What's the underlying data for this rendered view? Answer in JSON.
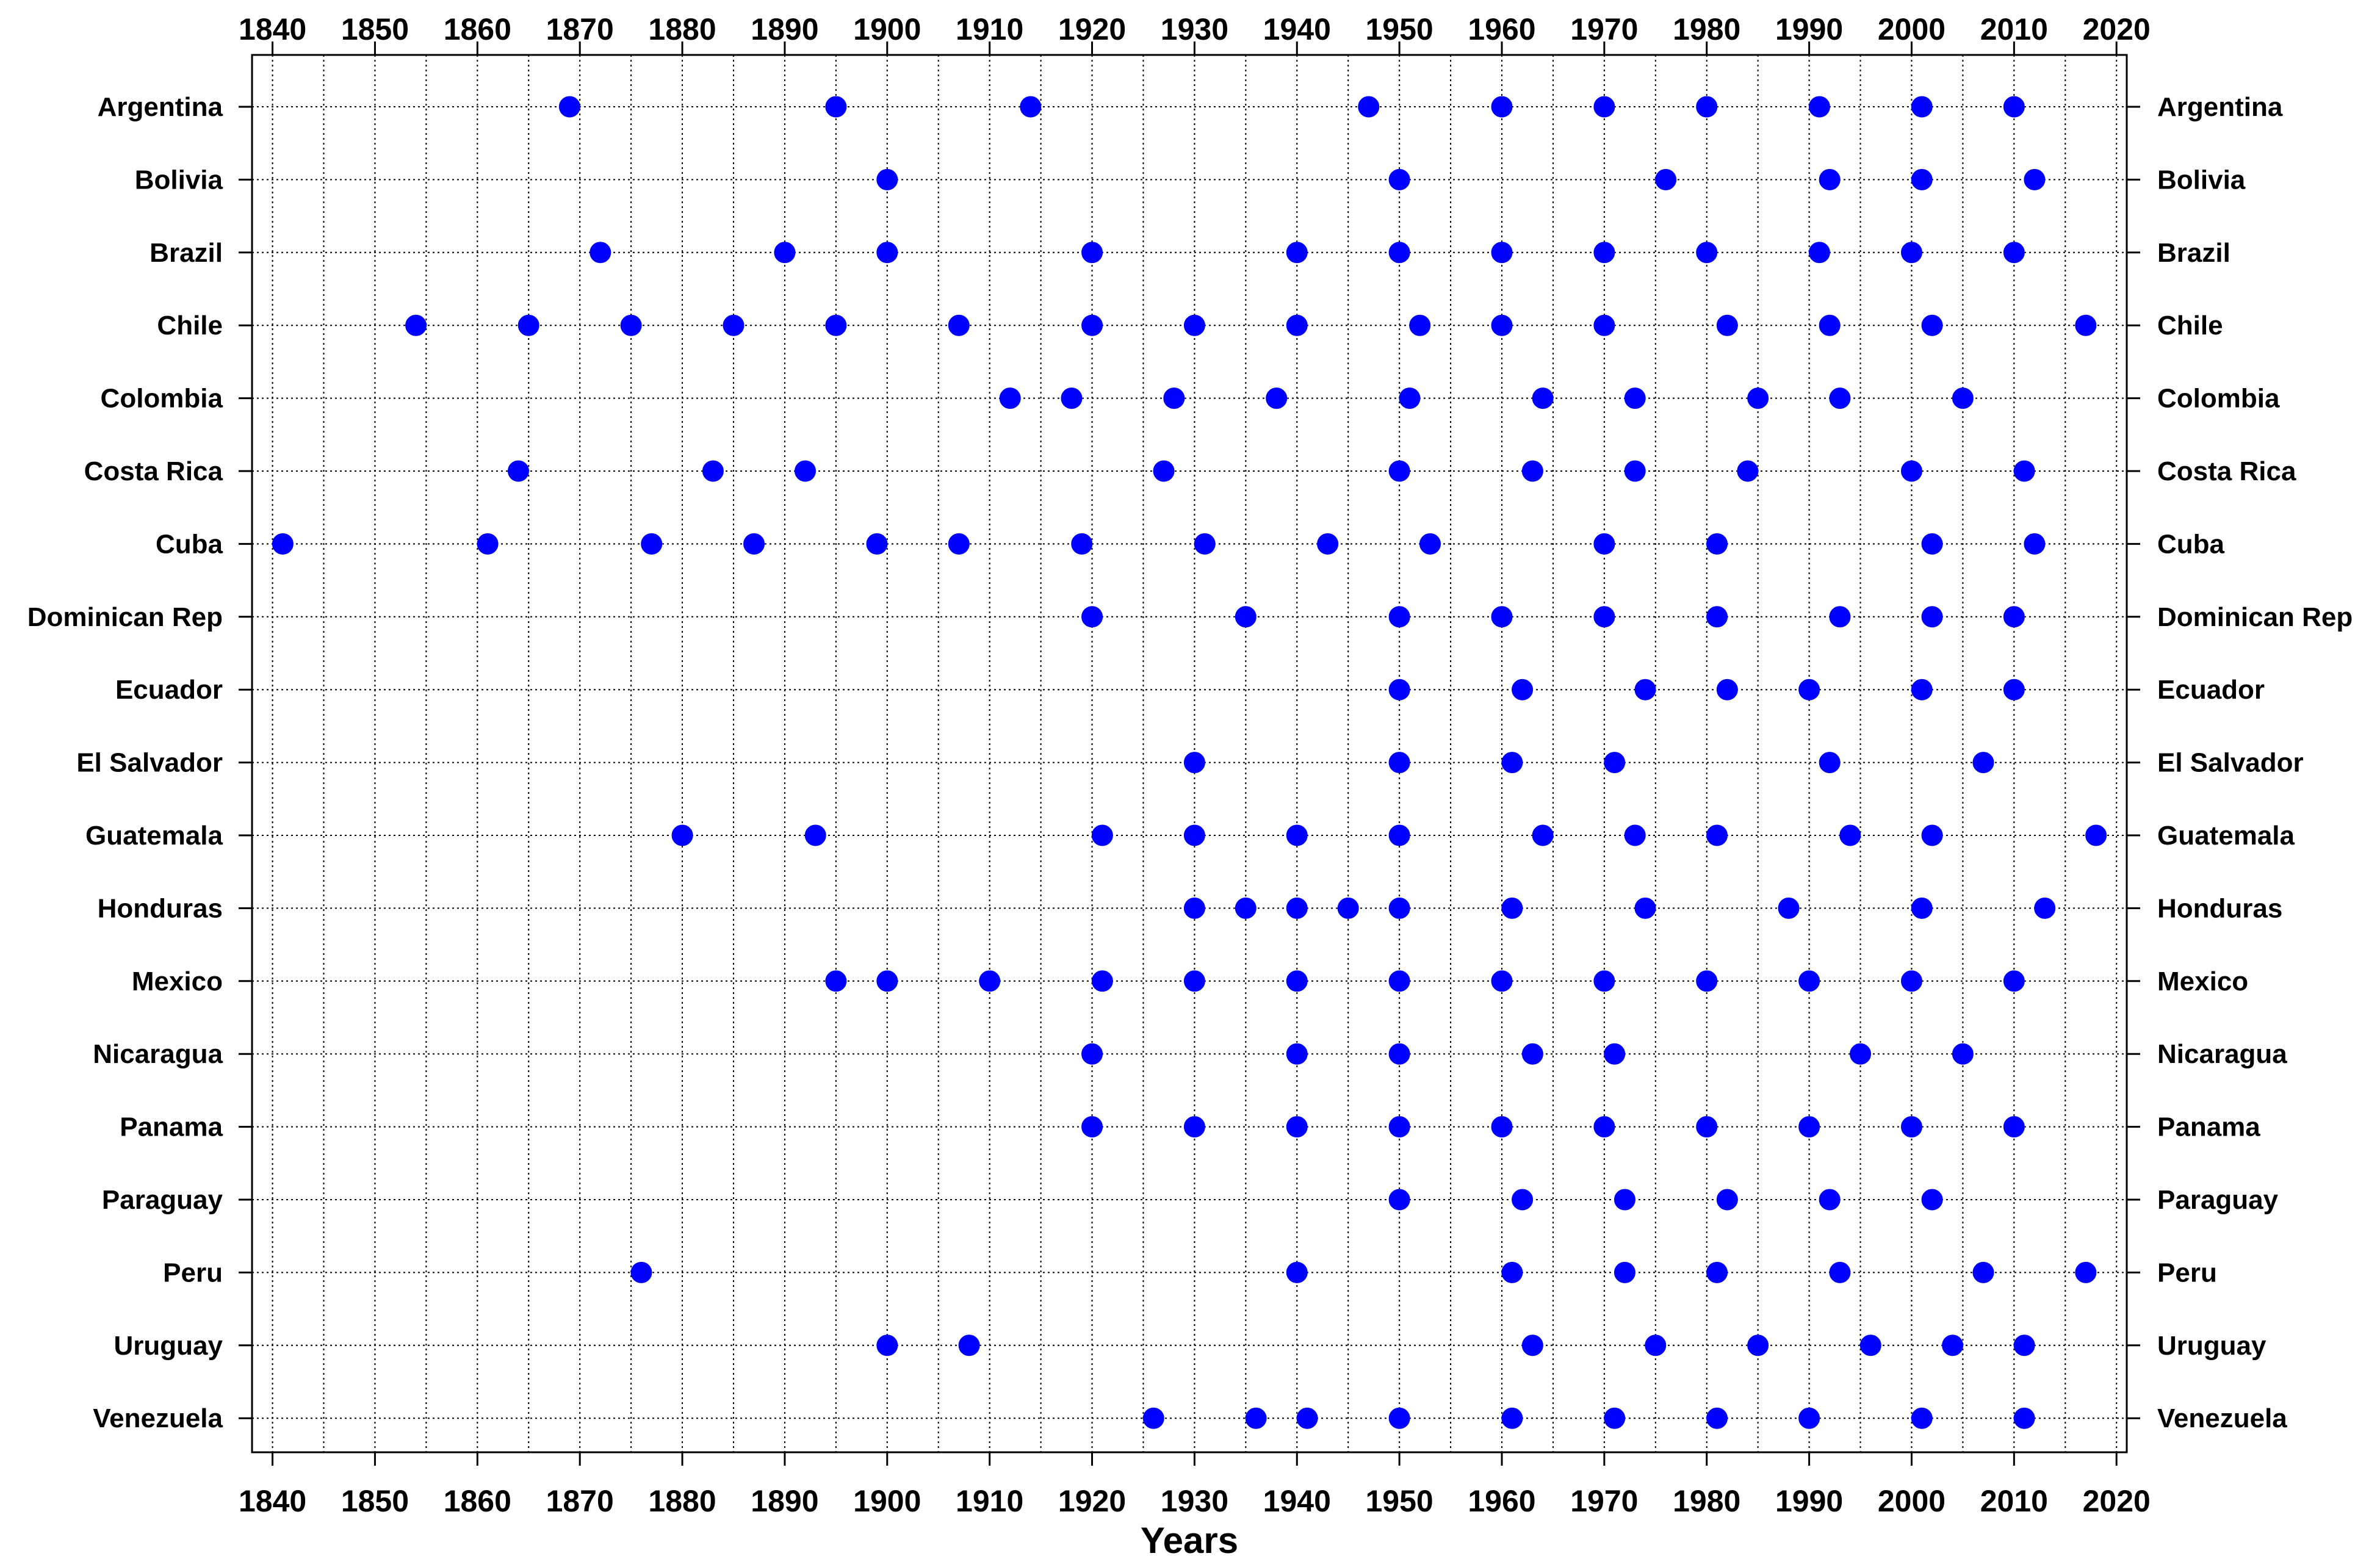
{
  "chart_data": {
    "type": "scatter",
    "title": "",
    "xlabel": "Years",
    "ylabel": "",
    "xlim": [
      1838,
      2021
    ],
    "x_ticks": [
      1840,
      1850,
      1860,
      1870,
      1880,
      1890,
      1900,
      1910,
      1920,
      1930,
      1940,
      1950,
      1960,
      1970,
      1980,
      1990,
      2000,
      2010,
      2020
    ],
    "x_tick_labels": [
      "1840",
      "1850",
      "1860",
      "1870",
      "1880",
      "1890",
      "1900",
      "1910",
      "1920",
      "1930",
      "1940",
      "1950",
      "1960",
      "1970",
      "1980",
      "1990",
      "2000",
      "2010",
      "2020"
    ],
    "x_tick_labels_top": true,
    "category_labels_both_sides": true,
    "grid": true,
    "grid_style": "dotted",
    "marker_color": "#0000ff",
    "categories": [
      "Argentina",
      "Bolivia",
      "Brazil",
      "Chile",
      "Colombia",
      "Costa Rica",
      "Cuba",
      "Dominican Rep",
      "Ecuador",
      "El Salvador",
      "Guatemala",
      "Honduras",
      "Mexico",
      "Nicaragua",
      "Panama",
      "Paraguay",
      "Peru",
      "Uruguay",
      "Venezuela"
    ],
    "series": [
      {
        "category": "Argentina",
        "years": [
          1869,
          1895,
          1914,
          1947,
          1960,
          1970,
          1980,
          1991,
          2001,
          2010
        ]
      },
      {
        "category": "Bolivia",
        "years": [
          1900,
          1950,
          1976,
          1992,
          2001,
          2012
        ]
      },
      {
        "category": "Brazil",
        "years": [
          1872,
          1890,
          1900,
          1920,
          1940,
          1950,
          1960,
          1970,
          1980,
          1991,
          2000,
          2010
        ]
      },
      {
        "category": "Chile",
        "years": [
          1854,
          1865,
          1875,
          1885,
          1895,
          1907,
          1920,
          1930,
          1940,
          1952,
          1960,
          1970,
          1982,
          1992,
          2002,
          2017
        ]
      },
      {
        "category": "Colombia",
        "years": [
          1912,
          1918,
          1928,
          1938,
          1951,
          1964,
          1973,
          1985,
          1993,
          2005
        ]
      },
      {
        "category": "Costa Rica",
        "years": [
          1864,
          1883,
          1892,
          1927,
          1950,
          1963,
          1973,
          1984,
          2000,
          2011
        ]
      },
      {
        "category": "Cuba",
        "years": [
          1841,
          1861,
          1877,
          1887,
          1899,
          1907,
          1919,
          1931,
          1943,
          1953,
          1970,
          1981,
          2002,
          2012
        ]
      },
      {
        "category": "Dominican Rep",
        "years": [
          1920,
          1935,
          1950,
          1960,
          1970,
          1981,
          1993,
          2002,
          2010
        ]
      },
      {
        "category": "Ecuador",
        "years": [
          1950,
          1962,
          1974,
          1982,
          1990,
          2001,
          2010
        ]
      },
      {
        "category": "El Salvador",
        "years": [
          1930,
          1950,
          1961,
          1971,
          1992,
          2007
        ]
      },
      {
        "category": "Guatemala",
        "years": [
          1880,
          1893,
          1921,
          1930,
          1940,
          1950,
          1964,
          1973,
          1981,
          1994,
          2002,
          2018
        ]
      },
      {
        "category": "Honduras",
        "years": [
          1930,
          1935,
          1940,
          1945,
          1950,
          1961,
          1974,
          1988,
          2001,
          2013
        ]
      },
      {
        "category": "Mexico",
        "years": [
          1895,
          1900,
          1910,
          1921,
          1930,
          1940,
          1950,
          1960,
          1970,
          1980,
          1990,
          2000,
          2010
        ]
      },
      {
        "category": "Nicaragua",
        "years": [
          1920,
          1940,
          1950,
          1963,
          1971,
          1995,
          2005
        ]
      },
      {
        "category": "Panama",
        "years": [
          1920,
          1930,
          1940,
          1950,
          1960,
          1970,
          1980,
          1990,
          2000,
          2010
        ]
      },
      {
        "category": "Paraguay",
        "years": [
          1950,
          1962,
          1972,
          1982,
          1992,
          2002
        ]
      },
      {
        "category": "Peru",
        "years": [
          1876,
          1940,
          1961,
          1972,
          1981,
          1993,
          2007,
          2017
        ]
      },
      {
        "category": "Uruguay",
        "years": [
          1900,
          1908,
          1963,
          1975,
          1985,
          1996,
          2004,
          2011
        ]
      },
      {
        "category": "Venezuela",
        "years": [
          1926,
          1936,
          1941,
          1950,
          1961,
          1971,
          1981,
          1990,
          2001,
          2011
        ]
      }
    ]
  }
}
